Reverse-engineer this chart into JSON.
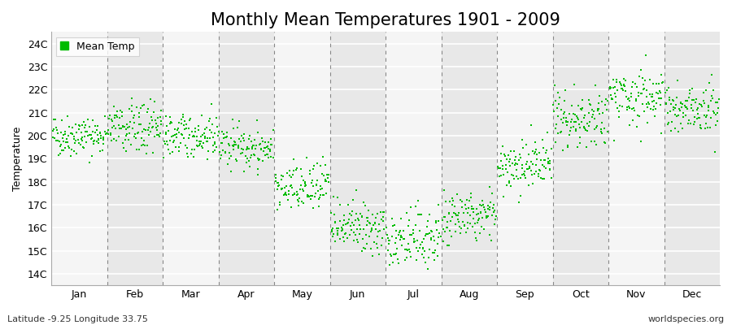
{
  "title": "Monthly Mean Temperatures 1901 - 2009",
  "ylabel": "Temperature",
  "xlabel_labels": [
    "Jan",
    "Feb",
    "Mar",
    "Apr",
    "May",
    "Jun",
    "Jul",
    "Aug",
    "Sep",
    "Oct",
    "Nov",
    "Dec"
  ],
  "subtitle_left": "Latitude -9.25 Longitude 33.75",
  "subtitle_right": "worldspecies.org",
  "legend_label": "Mean Temp",
  "ytick_labels": [
    "14C",
    "15C",
    "16C",
    "17C",
    "18C",
    "19C",
    "20C",
    "21C",
    "22C",
    "23C",
    "24C"
  ],
  "ytick_values": [
    14,
    15,
    16,
    17,
    18,
    19,
    20,
    21,
    22,
    23,
    24
  ],
  "ylim": [
    13.5,
    24.5
  ],
  "dot_color": "#00bb00",
  "dot_size": 3,
  "background_color": "#ffffff",
  "plot_bg_color": "#e8e8e8",
  "grid_band_color": "#f5f5f5",
  "grid_color": "#ffffff",
  "dashed_line_color": "#888888",
  "years": 109,
  "monthly_means": [
    20.0,
    20.3,
    20.0,
    19.5,
    17.7,
    16.0,
    15.5,
    16.5,
    18.7,
    20.7,
    21.7,
    21.2
  ],
  "monthly_stds": [
    0.45,
    0.55,
    0.45,
    0.45,
    0.55,
    0.55,
    0.65,
    0.55,
    0.55,
    0.55,
    0.65,
    0.55
  ],
  "title_fontsize": 15,
  "axis_fontsize": 9,
  "tick_fontsize": 9,
  "figsize": [
    9.0,
    4.0
  ],
  "dpi": 100
}
